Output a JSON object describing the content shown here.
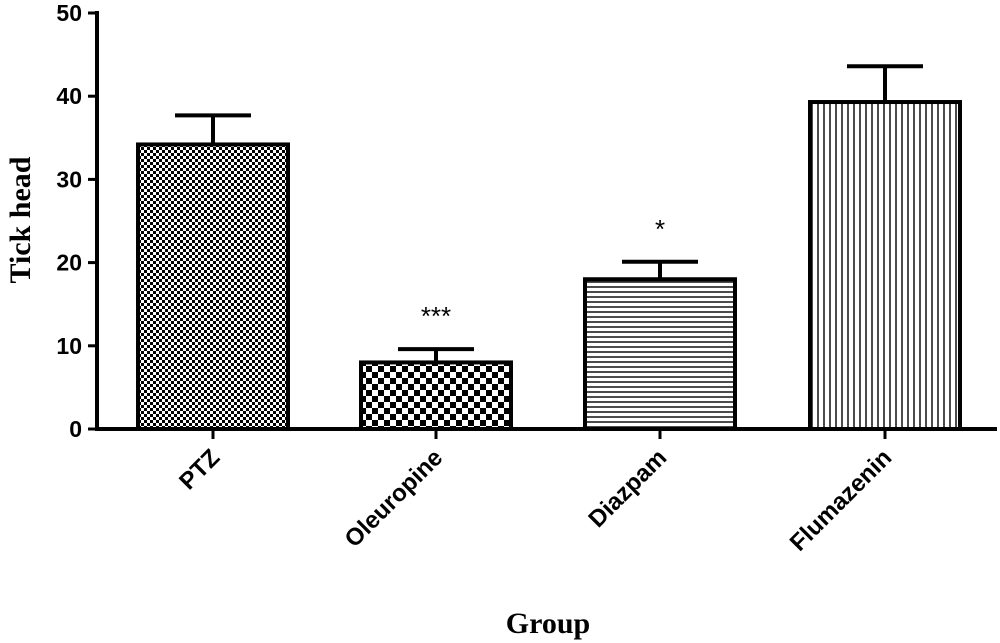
{
  "chart_data": {
    "type": "bar",
    "categories": [
      "PTZ",
      "Oleuropine",
      "Diazpam",
      "Flumazenin"
    ],
    "values": [
      34.2,
      8.0,
      18.0,
      39.3
    ],
    "errors": [
      3.5,
      1.6,
      2.1,
      4.3
    ],
    "annotations": [
      "",
      "***",
      "*",
      ""
    ],
    "fill_patterns": [
      "fine-checker",
      "coarse-checker",
      "horizontal-lines",
      "vertical-lines"
    ],
    "xlabel": "Group",
    "ylabel": "Tick head",
    "ylim": [
      0,
      50
    ],
    "yticks": [
      "0",
      "10",
      "20",
      "30",
      "40",
      "50"
    ],
    "grid": false,
    "colors": {
      "stroke": "#000000",
      "fill": "#ffffff"
    }
  }
}
